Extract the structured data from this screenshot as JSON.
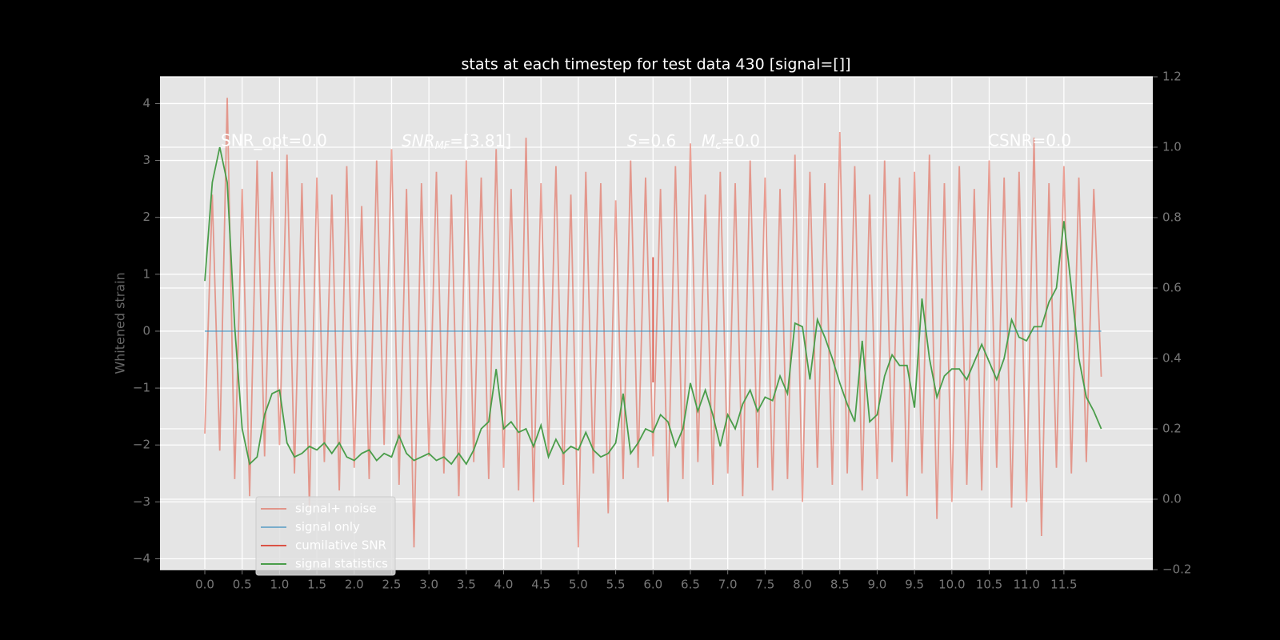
{
  "chart_data": {
    "type": "line",
    "title": "stats at each timestep for test data 430 [signal=[]]",
    "ylabel": "Whitened strain",
    "annotations": [
      "SNR_opt=0.0",
      {
        "italic": "SNR",
        "sub": "MF",
        "text": "=[3.81]"
      },
      {
        "italic": "S",
        "text": "=0.6"
      },
      {
        "italic": "M",
        "sub": "c",
        "text": "=0.0"
      },
      "CSNR=0.0"
    ],
    "x": [
      0,
      0.1,
      0.2,
      0.3,
      0.4,
      0.5,
      0.6,
      0.7,
      0.8,
      0.9,
      1.0,
      1.1,
      1.2,
      1.3,
      1.4,
      1.5,
      1.6,
      1.7,
      1.8,
      1.9,
      2.0,
      2.1,
      2.2,
      2.3,
      2.4,
      2.5,
      2.6,
      2.7,
      2.8,
      2.9,
      3.0,
      3.1,
      3.2,
      3.3,
      3.4,
      3.5,
      3.6,
      3.7,
      3.8,
      3.9,
      4.0,
      4.1,
      4.2,
      4.3,
      4.4,
      4.5,
      4.6,
      4.7,
      4.8,
      4.9,
      5.0,
      5.1,
      5.2,
      5.3,
      5.4,
      5.5,
      5.6,
      5.7,
      5.8,
      5.9,
      6.0,
      6.1,
      6.2,
      6.3,
      6.4,
      6.5,
      6.6,
      6.7,
      6.8,
      6.9,
      7.0,
      7.1,
      7.2,
      7.3,
      7.4,
      7.5,
      7.6,
      7.7,
      7.8,
      7.9,
      8.0,
      8.1,
      8.2,
      8.3,
      8.4,
      8.5,
      8.6,
      8.7,
      8.8,
      8.9,
      9.0,
      9.1,
      9.2,
      9.3,
      9.4,
      9.5,
      9.6,
      9.7,
      9.8,
      9.9,
      10.0,
      10.1,
      10.2,
      10.3,
      10.4,
      10.5,
      10.6,
      10.7,
      10.8,
      10.9,
      11.0,
      11.1,
      11.2,
      11.3,
      11.4,
      11.5,
      11.6,
      11.7,
      11.8,
      11.9,
      12.0
    ],
    "series": [
      {
        "name": "signal+ noise",
        "color": "#E24A33",
        "opacity": 0.5,
        "values": [
          -1.8,
          2.4,
          -2.1,
          4.1,
          -2.6,
          2.5,
          -2.9,
          3.0,
          -2.2,
          2.8,
          -2.0,
          3.1,
          -2.5,
          2.6,
          -3.1,
          2.7,
          -2.3,
          2.4,
          -2.8,
          2.9,
          -2.4,
          2.2,
          -2.6,
          3.0,
          -2.0,
          3.2,
          -2.7,
          2.5,
          -3.8,
          2.6,
          -2.2,
          2.8,
          -2.5,
          2.4,
          -2.9,
          3.0,
          -2.3,
          2.7,
          -2.6,
          3.2,
          -2.4,
          2.5,
          -2.8,
          3.4,
          -3.0,
          2.6,
          -2.2,
          2.9,
          -2.7,
          2.4,
          -3.8,
          2.8,
          -2.5,
          2.6,
          -3.2,
          2.3,
          -2.6,
          3.0,
          -2.4,
          2.7,
          -2.2,
          2.5,
          -3.0,
          2.9,
          -2.6,
          3.3,
          -2.3,
          2.4,
          -2.7,
          2.8,
          -2.5,
          2.6,
          -2.9,
          3.0,
          -2.4,
          2.7,
          -2.8,
          2.5,
          -2.6,
          3.1,
          -3.0,
          2.8,
          -2.4,
          2.6,
          -2.7,
          3.5,
          -2.5,
          2.9,
          -2.8,
          2.4,
          -2.6,
          3.0,
          -2.3,
          2.7,
          -2.9,
          2.8,
          -2.5,
          3.1,
          -3.3,
          2.6,
          -3.0,
          2.9,
          -2.7,
          2.5,
          -2.8,
          3.0,
          -2.4,
          2.7,
          -3.1,
          2.8,
          -3.0,
          3.4,
          -3.6,
          2.6,
          -2.4,
          2.9,
          -2.5,
          2.7,
          -2.3,
          2.5,
          -0.8
        ]
      },
      {
        "name": "signal only",
        "color": "#348ABD",
        "opacity": 0.6,
        "x": [
          0,
          12
        ],
        "values": [
          0,
          0
        ]
      },
      {
        "name": "cumilative SNR",
        "color": "#d9301e",
        "opacity": 0.8,
        "x": [
          6.0,
          6.0
        ],
        "values": [
          1.3,
          -0.9
        ]
      },
      {
        "name": "signal statistics",
        "color": "#4a9d4a",
        "opacity": 1,
        "axis": "y2",
        "values": [
          0.62,
          0.9,
          1.0,
          0.9,
          0.49,
          0.2,
          0.1,
          0.12,
          0.24,
          0.3,
          0.31,
          0.16,
          0.12,
          0.13,
          0.15,
          0.14,
          0.16,
          0.13,
          0.16,
          0.12,
          0.11,
          0.13,
          0.14,
          0.11,
          0.13,
          0.12,
          0.18,
          0.13,
          0.11,
          0.12,
          0.13,
          0.11,
          0.12,
          0.1,
          0.13,
          0.1,
          0.14,
          0.2,
          0.22,
          0.37,
          0.2,
          0.22,
          0.19,
          0.2,
          0.15,
          0.21,
          0.12,
          0.17,
          0.13,
          0.15,
          0.14,
          0.19,
          0.14,
          0.12,
          0.13,
          0.16,
          0.3,
          0.13,
          0.16,
          0.2,
          0.19,
          0.24,
          0.22,
          0.15,
          0.2,
          0.33,
          0.25,
          0.31,
          0.24,
          0.15,
          0.24,
          0.2,
          0.27,
          0.31,
          0.25,
          0.29,
          0.28,
          0.35,
          0.3,
          0.5,
          0.49,
          0.34,
          0.51,
          0.46,
          0.4,
          0.33,
          0.27,
          0.22,
          0.45,
          0.22,
          0.24,
          0.35,
          0.41,
          0.38,
          0.38,
          0.26,
          0.57,
          0.4,
          0.29,
          0.35,
          0.37,
          0.37,
          0.34,
          0.39,
          0.44,
          0.39,
          0.34,
          0.4,
          0.51,
          0.46,
          0.45,
          0.49,
          0.49,
          0.56,
          0.6,
          0.79,
          0.6,
          0.4,
          0.29,
          0.25,
          0.2
        ]
      }
    ],
    "xlim": [
      -0.6,
      12.69
    ],
    "xticks": [
      {
        "value": 0,
        "label": "0.0"
      },
      0.5,
      {
        "value": 1,
        "label": "1.0"
      },
      1.5,
      {
        "value": 2,
        "label": "2.0"
      },
      2.5,
      {
        "value": 3,
        "label": "3.0"
      },
      3.5,
      {
        "value": 4,
        "label": "4.0"
      },
      4.5,
      {
        "value": 5,
        "label": "5.0"
      },
      5.5,
      {
        "value": 6,
        "label": "6.0"
      },
      6.5,
      {
        "value": 7,
        "label": "7.0"
      },
      7.5,
      {
        "value": 8,
        "label": "8.0"
      },
      8.5,
      {
        "value": 9,
        "label": "9.0"
      },
      9.5,
      {
        "value": 10,
        "label": "10.0"
      },
      10.5,
      {
        "value": 11,
        "label": "11.0"
      },
      11.5
    ],
    "ylim": [
      -4.19,
      4.47
    ],
    "yticks": [
      {
        "value": -4,
        "label": "−4"
      },
      {
        "value": -3,
        "label": "−3"
      },
      {
        "value": -2,
        "label": "−2"
      },
      {
        "value": -1,
        "label": "−1"
      },
      0,
      1,
      2,
      3,
      4
    ],
    "y2lim": [
      -0.2,
      1.2
    ],
    "y2ticks": [
      {
        "value": -0.2,
        "label": "−0.2"
      },
      {
        "value": 0,
        "label": "0.0"
      },
      0.2,
      0.4,
      0.6,
      0.8,
      {
        "value": 1,
        "label": "1.0"
      },
      1.2
    ],
    "grid": true,
    "legend_loc": "lower left"
  }
}
